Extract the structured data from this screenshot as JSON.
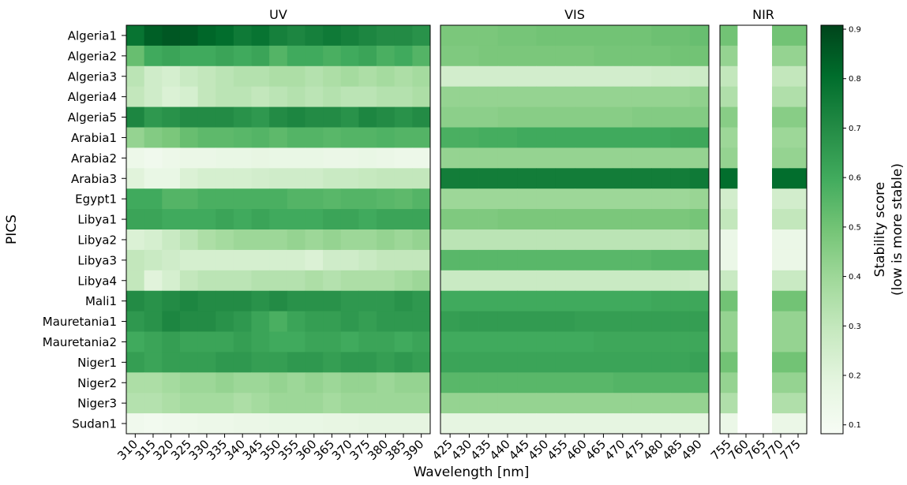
{
  "chart_data": {
    "type": "heatmap",
    "ylabel": "PICS",
    "xlabel": "Wavelength [nm]",
    "categories": [
      "Algeria1",
      "Algeria2",
      "Algeria3",
      "Algeria4",
      "Algeria5",
      "Arabia1",
      "Arabia2",
      "Arabia3",
      "Egypt1",
      "Libya1",
      "Libya2",
      "Libya3",
      "Libya4",
      "Mali1",
      "Mauretania1",
      "Mauretania2",
      "Niger1",
      "Niger2",
      "Niger3",
      "Sudan1"
    ],
    "cmap": "Greens",
    "colorbar_label": [
      "Stability score",
      "(low is more stable)"
    ],
    "clim": [
      0.082,
      0.908
    ],
    "cticks": [
      0.1,
      0.2,
      0.3,
      0.4,
      0.5,
      0.6,
      0.7,
      0.8,
      0.9
    ],
    "panels": [
      {
        "title": "UV",
        "x": [
          310,
          315,
          320,
          325,
          330,
          335,
          340,
          345,
          350,
          355,
          360,
          365,
          370,
          375,
          380,
          385,
          390
        ],
        "values": [
          [
            0.78,
            0.84,
            0.86,
            0.85,
            0.82,
            0.8,
            0.76,
            0.78,
            0.74,
            0.72,
            0.74,
            0.76,
            0.74,
            0.72,
            0.7,
            0.7,
            0.68
          ],
          [
            0.52,
            0.6,
            0.62,
            0.6,
            0.6,
            0.62,
            0.6,
            0.62,
            0.56,
            0.6,
            0.6,
            0.58,
            0.6,
            0.62,
            0.58,
            0.6,
            0.56
          ],
          [
            0.32,
            0.26,
            0.24,
            0.28,
            0.3,
            0.32,
            0.34,
            0.34,
            0.36,
            0.36,
            0.34,
            0.36,
            0.38,
            0.36,
            0.38,
            0.36,
            0.38
          ],
          [
            0.3,
            0.26,
            0.22,
            0.24,
            0.3,
            0.32,
            0.32,
            0.3,
            0.32,
            0.34,
            0.32,
            0.34,
            0.32,
            0.32,
            0.34,
            0.34,
            0.36
          ],
          [
            0.72,
            0.66,
            0.68,
            0.7,
            0.7,
            0.7,
            0.68,
            0.66,
            0.7,
            0.72,
            0.7,
            0.7,
            0.68,
            0.72,
            0.7,
            0.68,
            0.7
          ],
          [
            0.42,
            0.46,
            0.48,
            0.52,
            0.54,
            0.54,
            0.55,
            0.56,
            0.54,
            0.56,
            0.56,
            0.55,
            0.56,
            0.56,
            0.57,
            0.56,
            0.56
          ],
          [
            0.14,
            0.12,
            0.14,
            0.15,
            0.15,
            0.16,
            0.16,
            0.17,
            0.16,
            0.16,
            0.16,
            0.15,
            0.15,
            0.16,
            0.15,
            0.14,
            0.14
          ],
          [
            0.2,
            0.16,
            0.16,
            0.22,
            0.24,
            0.24,
            0.24,
            0.25,
            0.26,
            0.26,
            0.26,
            0.28,
            0.28,
            0.29,
            0.3,
            0.3,
            0.3
          ],
          [
            0.6,
            0.6,
            0.56,
            0.56,
            0.58,
            0.58,
            0.58,
            0.58,
            0.58,
            0.56,
            0.56,
            0.55,
            0.56,
            0.56,
            0.55,
            0.54,
            0.56
          ],
          [
            0.62,
            0.62,
            0.6,
            0.6,
            0.6,
            0.62,
            0.6,
            0.62,
            0.6,
            0.6,
            0.6,
            0.62,
            0.62,
            0.6,
            0.62,
            0.62,
            0.62
          ],
          [
            0.22,
            0.24,
            0.28,
            0.32,
            0.36,
            0.38,
            0.4,
            0.4,
            0.4,
            0.42,
            0.4,
            0.42,
            0.4,
            0.4,
            0.42,
            0.4,
            0.42
          ],
          [
            0.3,
            0.28,
            0.26,
            0.24,
            0.24,
            0.24,
            0.24,
            0.24,
            0.24,
            0.24,
            0.22,
            0.26,
            0.26,
            0.28,
            0.3,
            0.3,
            0.3
          ],
          [
            0.3,
            0.2,
            0.24,
            0.3,
            0.32,
            0.32,
            0.32,
            0.34,
            0.34,
            0.34,
            0.36,
            0.34,
            0.36,
            0.36,
            0.36,
            0.38,
            0.4
          ],
          [
            0.7,
            0.68,
            0.7,
            0.72,
            0.7,
            0.7,
            0.7,
            0.68,
            0.7,
            0.68,
            0.68,
            0.68,
            0.66,
            0.66,
            0.66,
            0.68,
            0.66
          ],
          [
            0.66,
            0.68,
            0.72,
            0.7,
            0.7,
            0.68,
            0.66,
            0.62,
            0.58,
            0.62,
            0.64,
            0.64,
            0.66,
            0.64,
            0.66,
            0.66,
            0.66
          ],
          [
            0.6,
            0.62,
            0.64,
            0.62,
            0.62,
            0.62,
            0.64,
            0.62,
            0.6,
            0.6,
            0.62,
            0.62,
            0.6,
            0.62,
            0.62,
            0.6,
            0.62
          ],
          [
            0.64,
            0.62,
            0.64,
            0.64,
            0.64,
            0.66,
            0.66,
            0.64,
            0.64,
            0.66,
            0.66,
            0.64,
            0.66,
            0.66,
            0.64,
            0.66,
            0.64
          ],
          [
            0.36,
            0.36,
            0.38,
            0.4,
            0.4,
            0.42,
            0.4,
            0.4,
            0.42,
            0.4,
            0.42,
            0.4,
            0.42,
            0.42,
            0.4,
            0.42,
            0.42
          ],
          [
            0.34,
            0.34,
            0.36,
            0.38,
            0.38,
            0.38,
            0.36,
            0.38,
            0.4,
            0.4,
            0.4,
            0.38,
            0.4,
            0.4,
            0.4,
            0.4,
            0.4
          ],
          [
            0.12,
            0.11,
            0.12,
            0.13,
            0.14,
            0.14,
            0.15,
            0.15,
            0.16,
            0.16,
            0.16,
            0.17,
            0.17,
            0.18,
            0.18,
            0.18,
            0.18
          ]
        ]
      },
      {
        "title": "VIS",
        "x": [
          425,
          430,
          435,
          440,
          445,
          450,
          455,
          460,
          465,
          470,
          475,
          480,
          485,
          490
        ],
        "values": [
          [
            0.48,
            0.48,
            0.48,
            0.49,
            0.49,
            0.5,
            0.5,
            0.5,
            0.5,
            0.5,
            0.5,
            0.51,
            0.51,
            0.52
          ],
          [
            0.47,
            0.47,
            0.48,
            0.48,
            0.48,
            0.48,
            0.48,
            0.48,
            0.49,
            0.49,
            0.49,
            0.49,
            0.5,
            0.5
          ],
          [
            0.25,
            0.25,
            0.25,
            0.25,
            0.25,
            0.25,
            0.25,
            0.25,
            0.25,
            0.25,
            0.25,
            0.26,
            0.26,
            0.27
          ],
          [
            0.42,
            0.42,
            0.42,
            0.42,
            0.42,
            0.42,
            0.42,
            0.42,
            0.42,
            0.42,
            0.42,
            0.42,
            0.42,
            0.43
          ],
          [
            0.44,
            0.44,
            0.44,
            0.45,
            0.45,
            0.45,
            0.45,
            0.45,
            0.45,
            0.45,
            0.46,
            0.46,
            0.46,
            0.46
          ],
          [
            0.58,
            0.58,
            0.59,
            0.59,
            0.6,
            0.6,
            0.6,
            0.6,
            0.6,
            0.6,
            0.6,
            0.6,
            0.61,
            0.61
          ],
          [
            0.42,
            0.42,
            0.42,
            0.42,
            0.42,
            0.42,
            0.42,
            0.42,
            0.42,
            0.42,
            0.42,
            0.42,
            0.42,
            0.42
          ],
          [
            0.75,
            0.75,
            0.75,
            0.75,
            0.75,
            0.75,
            0.75,
            0.75,
            0.75,
            0.75,
            0.75,
            0.75,
            0.75,
            0.76
          ],
          [
            0.4,
            0.4,
            0.4,
            0.4,
            0.4,
            0.4,
            0.4,
            0.4,
            0.4,
            0.4,
            0.4,
            0.4,
            0.4,
            0.41
          ],
          [
            0.47,
            0.47,
            0.47,
            0.48,
            0.48,
            0.48,
            0.48,
            0.48,
            0.48,
            0.48,
            0.48,
            0.48,
            0.48,
            0.49
          ],
          [
            0.32,
            0.32,
            0.32,
            0.32,
            0.32,
            0.32,
            0.32,
            0.32,
            0.32,
            0.32,
            0.32,
            0.32,
            0.32,
            0.33
          ],
          [
            0.55,
            0.55,
            0.55,
            0.55,
            0.55,
            0.55,
            0.55,
            0.55,
            0.55,
            0.55,
            0.55,
            0.56,
            0.56,
            0.56
          ],
          [
            0.28,
            0.28,
            0.28,
            0.28,
            0.28,
            0.28,
            0.28,
            0.28,
            0.28,
            0.28,
            0.28,
            0.28,
            0.28,
            0.27
          ],
          [
            0.6,
            0.6,
            0.6,
            0.6,
            0.6,
            0.6,
            0.6,
            0.6,
            0.6,
            0.6,
            0.6,
            0.61,
            0.61,
            0.61
          ],
          [
            0.64,
            0.65,
            0.65,
            0.65,
            0.65,
            0.65,
            0.65,
            0.64,
            0.64,
            0.64,
            0.64,
            0.64,
            0.64,
            0.64
          ],
          [
            0.6,
            0.6,
            0.6,
            0.6,
            0.6,
            0.6,
            0.6,
            0.6,
            0.61,
            0.61,
            0.61,
            0.61,
            0.61,
            0.61
          ],
          [
            0.62,
            0.62,
            0.62,
            0.62,
            0.62,
            0.62,
            0.62,
            0.62,
            0.62,
            0.62,
            0.62,
            0.62,
            0.62,
            0.63
          ],
          [
            0.55,
            0.55,
            0.55,
            0.55,
            0.55,
            0.55,
            0.55,
            0.55,
            0.55,
            0.56,
            0.56,
            0.56,
            0.56,
            0.56
          ],
          [
            0.42,
            0.42,
            0.42,
            0.42,
            0.42,
            0.42,
            0.42,
            0.42,
            0.42,
            0.42,
            0.42,
            0.42,
            0.42,
            0.42
          ],
          [
            0.18,
            0.18,
            0.18,
            0.18,
            0.18,
            0.18,
            0.18,
            0.18,
            0.18,
            0.18,
            0.18,
            0.18,
            0.18,
            0.18
          ]
        ]
      },
      {
        "title": "NIR",
        "x": [
          755,
          760,
          765,
          770,
          775
        ],
        "values": [
          [
            0.5,
            null,
            null,
            0.5,
            0.5
          ],
          [
            0.42,
            null,
            null,
            0.42,
            0.42
          ],
          [
            0.3,
            null,
            null,
            0.3,
            0.3
          ],
          [
            0.35,
            null,
            null,
            0.35,
            0.35
          ],
          [
            0.45,
            null,
            null,
            0.45,
            0.45
          ],
          [
            0.4,
            null,
            null,
            0.4,
            0.4
          ],
          [
            0.42,
            null,
            null,
            0.42,
            0.42
          ],
          [
            0.8,
            null,
            null,
            0.8,
            0.8
          ],
          [
            0.25,
            null,
            null,
            0.25,
            0.25
          ],
          [
            0.3,
            null,
            null,
            0.3,
            0.3
          ],
          [
            0.15,
            null,
            null,
            0.15,
            0.15
          ],
          [
            0.15,
            null,
            null,
            0.15,
            0.15
          ],
          [
            0.28,
            null,
            null,
            0.28,
            0.28
          ],
          [
            0.5,
            null,
            null,
            0.5,
            0.5
          ],
          [
            0.42,
            null,
            null,
            0.42,
            0.42
          ],
          [
            0.42,
            null,
            null,
            0.42,
            0.42
          ],
          [
            0.5,
            null,
            null,
            0.5,
            0.5
          ],
          [
            0.42,
            null,
            null,
            0.42,
            0.42
          ],
          [
            0.35,
            null,
            null,
            0.35,
            0.35
          ],
          [
            0.15,
            null,
            null,
            0.15,
            0.15
          ]
        ]
      }
    ]
  }
}
